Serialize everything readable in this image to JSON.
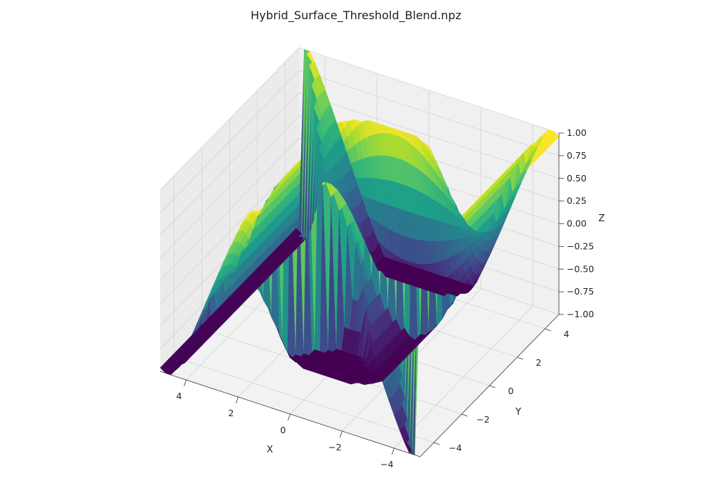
{
  "chart_data": {
    "type": "surface",
    "title": "Hybrid_Surface_Threshold_Blend.npz",
    "xlabel": "X",
    "ylabel": "Y",
    "zlabel": "Z",
    "xlim": [
      -5,
      5
    ],
    "ylim": [
      -5,
      5
    ],
    "zlim": [
      -1,
      1
    ],
    "x_ticks": [
      "−4",
      "−2",
      "0",
      "2",
      "4"
    ],
    "y_ticks": [
      "−4",
      "−2",
      "0",
      "2",
      "4"
    ],
    "z_ticks": [
      "−1.00",
      "−0.75",
      "−0.50",
      "−0.25",
      "0.00",
      "0.25",
      "0.50",
      "0.75",
      "1.00"
    ],
    "grid": true,
    "colormap": "viridis",
    "colormap_stops": [
      "#440154",
      "#482878",
      "#3e4989",
      "#31688e",
      "#26828e",
      "#1f9e89",
      "#35b779",
      "#6ece58",
      "#b5de2b",
      "#fde725"
    ],
    "pane_colors": {
      "floor": "#f2f2f2",
      "left_wall": "#ebebeb",
      "back_wall": "#f0f0f0"
    },
    "surface": {
      "description_formula": "z = sin(x) + sin(y) for |x| >= |y| else cos(x)*sin(y); thresholded blend clipped to [-1, 1]",
      "grid_size": 50
    }
  }
}
